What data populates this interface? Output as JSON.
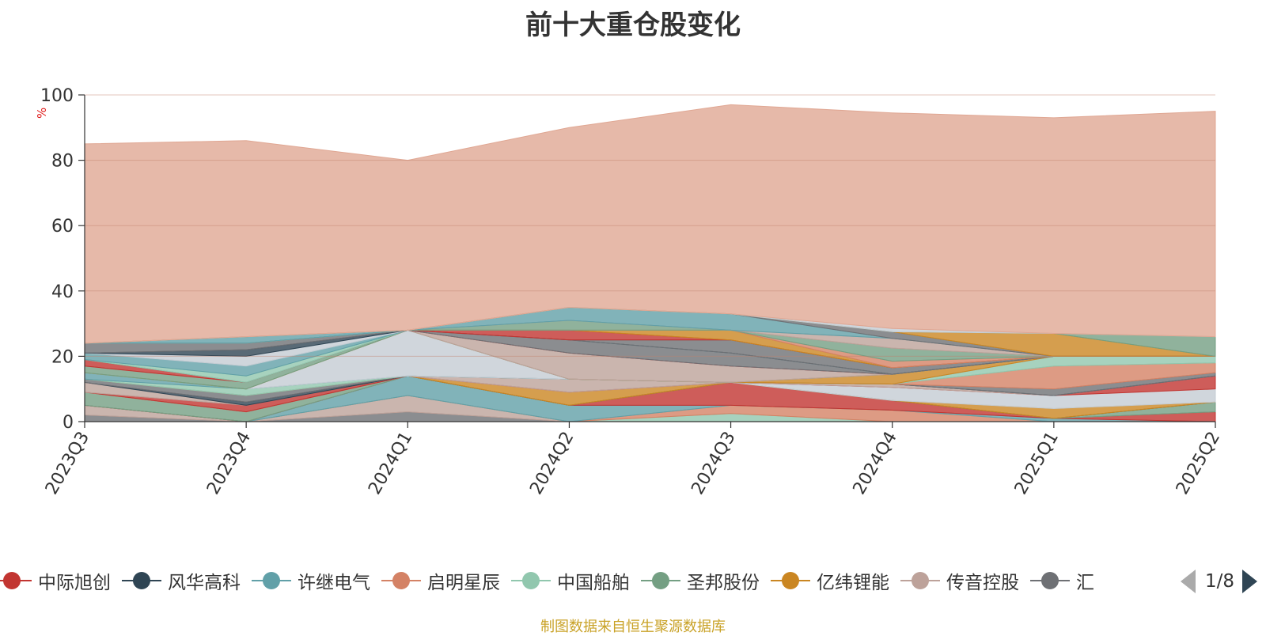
{
  "title": "前十大重仓股变化",
  "unit_label": "%",
  "source_text": "制图数据来自恒生聚源数据库",
  "pager": {
    "text": "1/8"
  },
  "legend": [
    {
      "name": "中际旭创",
      "color": "#c23531"
    },
    {
      "name": "风华高科",
      "color": "#2f4554"
    },
    {
      "name": "许继电气",
      "color": "#61a0a8"
    },
    {
      "name": "启明星辰",
      "color": "#d48265"
    },
    {
      "name": "中国船舶",
      "color": "#91c7ae"
    },
    {
      "name": "圣邦股份",
      "color": "#749f83"
    },
    {
      "name": "亿纬锂能",
      "color": "#ca8622"
    },
    {
      "name": "传音控股",
      "color": "#bda29a"
    },
    {
      "name": "汇",
      "color": "#6e7074"
    }
  ],
  "chart_data": {
    "type": "area",
    "stacked": true,
    "title": "前十大重仓股变化",
    "ylabel": "%",
    "ylim": [
      0,
      100
    ],
    "yticks": [
      0,
      20,
      40,
      60,
      80,
      100
    ],
    "grid": true,
    "categories": [
      "2023Q3",
      "2023Q4",
      "2024Q1",
      "2024Q2",
      "2024Q3",
      "2024Q4",
      "2025Q1",
      "2025Q2"
    ],
    "series": [
      {
        "color": "#6e7074",
        "values": [
          2,
          0,
          3,
          0,
          0,
          0,
          0,
          0
        ]
      },
      {
        "color": "#bda29a",
        "values": [
          3,
          0,
          5,
          0,
          0,
          0,
          0,
          0
        ]
      },
      {
        "color": "#91c7ae",
        "values": [
          0,
          0,
          0,
          0,
          2.5,
          0,
          0,
          0
        ]
      },
      {
        "color": "#d48265",
        "values": [
          0,
          0,
          0,
          0,
          2.5,
          3.5,
          0,
          0
        ]
      },
      {
        "color": "#61a0a8",
        "values": [
          0,
          0,
          6,
          5,
          0,
          0,
          1,
          0
        ]
      },
      {
        "color": "#c23531",
        "values": [
          0,
          0,
          0,
          0,
          7,
          3,
          0,
          3
        ]
      },
      {
        "color": "#749f83",
        "values": [
          4,
          3,
          0,
          0,
          0,
          0,
          0,
          3
        ]
      },
      {
        "color": "#546570",
        "values": [
          0,
          0,
          0,
          0,
          0,
          0,
          0,
          0
        ]
      },
      {
        "color": "#ca8622",
        "values": [
          0,
          0,
          0,
          4,
          0,
          0,
          3,
          0
        ]
      },
      {
        "color": "#c4ccd3",
        "values": [
          0,
          0,
          0,
          0,
          0,
          4,
          4,
          4
        ]
      },
      {
        "color": "#c23531",
        "values": [
          0,
          2,
          0,
          0,
          0,
          0,
          0,
          4
        ]
      },
      {
        "color": "#bda29a",
        "values": [
          3,
          0,
          0,
          4,
          0,
          1,
          0,
          0
        ]
      },
      {
        "color": "#2f4554",
        "values": [
          0,
          1,
          0,
          0,
          0,
          0,
          0,
          0
        ]
      },
      {
        "color": "#6e7074",
        "values": [
          1,
          2,
          0,
          0,
          0,
          0,
          2,
          1
        ]
      },
      {
        "color": "#d48265",
        "values": [
          0,
          0,
          0,
          0,
          0,
          0,
          7,
          3
        ]
      },
      {
        "color": "#91c7ae",
        "values": [
          0,
          2,
          0,
          0,
          0,
          0,
          3,
          2
        ]
      },
      {
        "color": "#61a0a8",
        "values": [
          2,
          0,
          0,
          0,
          0,
          0,
          0,
          0
        ]
      },
      {
        "color": "#c4ccd3",
        "values": [
          0,
          0,
          14,
          0,
          0,
          0,
          0,
          0
        ]
      },
      {
        "color": "#ca8622",
        "values": [
          0,
          0,
          0,
          0,
          0,
          3,
          0,
          0
        ]
      },
      {
        "color": "#749f83",
        "values": [
          2,
          2,
          0,
          0,
          0,
          0,
          0,
          0
        ]
      },
      {
        "color": "#bda29a",
        "values": [
          0,
          0,
          0,
          8,
          5,
          0,
          0,
          0
        ]
      },
      {
        "color": "#c23531",
        "values": [
          2,
          0,
          0,
          0,
          0,
          0,
          0,
          0
        ]
      },
      {
        "color": "#6e7074",
        "values": [
          0,
          0,
          0,
          4,
          4,
          0,
          0,
          0
        ]
      },
      {
        "color": "#91c7ae",
        "values": [
          0,
          2,
          0,
          0,
          0,
          0,
          0,
          0
        ]
      },
      {
        "color": "#61a0a8",
        "values": [
          2,
          3,
          0,
          0,
          0,
          0,
          0,
          0
        ]
      },
      {
        "color": "#c4ccd3",
        "values": [
          0,
          3,
          0,
          0,
          0,
          0,
          0,
          0
        ]
      },
      {
        "color": "#2f4554",
        "values": [
          0,
          2,
          0,
          0,
          0,
          0,
          0,
          0
        ]
      },
      {
        "color": "#6e7074",
        "values": [
          3,
          2,
          0,
          0,
          4,
          2,
          0,
          0
        ]
      },
      {
        "color": "#c23531",
        "values": [
          0,
          0,
          0,
          3,
          0,
          0,
          0,
          0
        ]
      },
      {
        "color": "#ca8622",
        "values": [
          0,
          0,
          0,
          0,
          3,
          0,
          0,
          0
        ]
      },
      {
        "color": "#d48265",
        "values": [
          0,
          0,
          0,
          0,
          0,
          2,
          0,
          0
        ]
      },
      {
        "color": "#749f83",
        "values": [
          0,
          0,
          0,
          3,
          0,
          4,
          0,
          0
        ]
      },
      {
        "color": "#bda29a",
        "values": [
          0,
          0,
          0,
          0,
          0,
          3,
          0,
          0
        ]
      },
      {
        "color": "#61a0a8",
        "values": [
          0,
          2,
          0,
          4,
          5,
          0,
          0,
          0
        ]
      },
      {
        "color": "#6e7074",
        "values": [
          0,
          0,
          0,
          0,
          0,
          2,
          0,
          0
        ]
      },
      {
        "color": "#ca8622",
        "values": [
          0,
          0,
          0,
          0,
          0,
          0,
          7,
          0
        ]
      },
      {
        "color": "#749f83",
        "values": [
          0,
          0,
          0,
          0,
          0,
          0,
          0,
          6
        ]
      },
      {
        "color": "#c4ccd3",
        "values": [
          0,
          0,
          0,
          0,
          0,
          1,
          0,
          0
        ]
      },
      {
        "color": "#e0a793",
        "values": [
          61,
          60,
          52,
          55,
          64,
          66,
          66,
          69
        ]
      }
    ]
  }
}
